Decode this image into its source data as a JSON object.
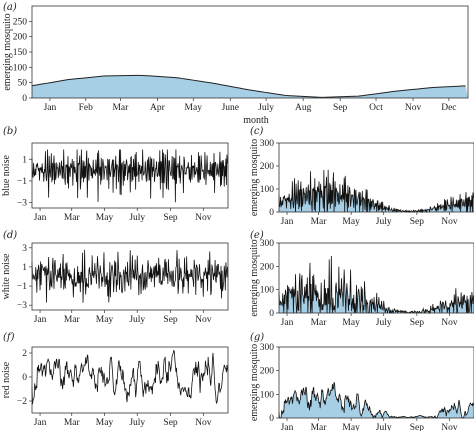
{
  "chart_data": [
    {
      "panel": "(a)",
      "type": "area",
      "ylabel": "emerging mosquito",
      "xlabel": "month",
      "ylim": [
        0,
        300
      ],
      "yticks": [
        0,
        50,
        100,
        150,
        200,
        250
      ],
      "xticks": [
        "Jan",
        "Feb",
        "Mar",
        "Apr",
        "May",
        "June",
        "July",
        "Aug",
        "Sep",
        "Oct",
        "Nov",
        "Dec"
      ],
      "series": [
        {
          "x": [
            1,
            2,
            3,
            4,
            5,
            6,
            7,
            8,
            9,
            10,
            11,
            12
          ],
          "values": [
            40,
            60,
            72,
            74,
            66,
            48,
            26,
            8,
            2,
            6,
            22,
            34
          ]
        }
      ],
      "fill": "#a6cfe6",
      "line": "#222222"
    },
    {
      "panel": "(b)",
      "type": "line",
      "ylabel": "blue noise",
      "ylim": [
        -3.5,
        2.5
      ],
      "yticks": [
        -3,
        -1,
        1
      ],
      "xticks": [
        "Jan",
        "Mar",
        "May",
        "July",
        "Sep",
        "Nov"
      ],
      "noise": "blue"
    },
    {
      "panel": "(c)",
      "type": "area",
      "ylabel": "emerging mosquito",
      "ylim": [
        0,
        300
      ],
      "yticks": [
        0,
        100,
        200,
        300
      ],
      "xticks": [
        "Jan",
        "Mar",
        "May",
        "July",
        "Sep",
        "Nov"
      ],
      "noise": "blue",
      "fill": "#a6cfe6"
    },
    {
      "panel": "(d)",
      "type": "line",
      "ylabel": "white noise",
      "ylim": [
        -3.5,
        3.5
      ],
      "yticks": [
        -3,
        -1,
        1,
        3
      ],
      "xticks": [
        "Jan",
        "Mar",
        "May",
        "July",
        "Sep",
        "Nov"
      ],
      "noise": "white"
    },
    {
      "panel": "(e)",
      "type": "area",
      "ylabel": "emerging mosquito",
      "ylim": [
        0,
        300
      ],
      "yticks": [
        0,
        100,
        200,
        300
      ],
      "xticks": [
        "Jan",
        "Mar",
        "May",
        "July",
        "Sep",
        "Nov"
      ],
      "noise": "white",
      "fill": "#a6cfe6"
    },
    {
      "panel": "(f)",
      "type": "line",
      "ylabel": "red noise",
      "ylim": [
        -3,
        2.5
      ],
      "yticks": [
        -2,
        0,
        2
      ],
      "xticks": [
        "Jan",
        "Mar",
        "May",
        "July",
        "Sep",
        "Nov"
      ],
      "noise": "red"
    },
    {
      "panel": "(g)",
      "type": "area",
      "ylabel": "emerging mosquito",
      "ylim": [
        0,
        300
      ],
      "yticks": [
        0,
        100,
        200,
        300
      ],
      "xticks": [
        "Jan",
        "Mar",
        "May",
        "July",
        "Sep",
        "Nov"
      ],
      "noise": "red",
      "fill": "#a6cfe6"
    }
  ]
}
